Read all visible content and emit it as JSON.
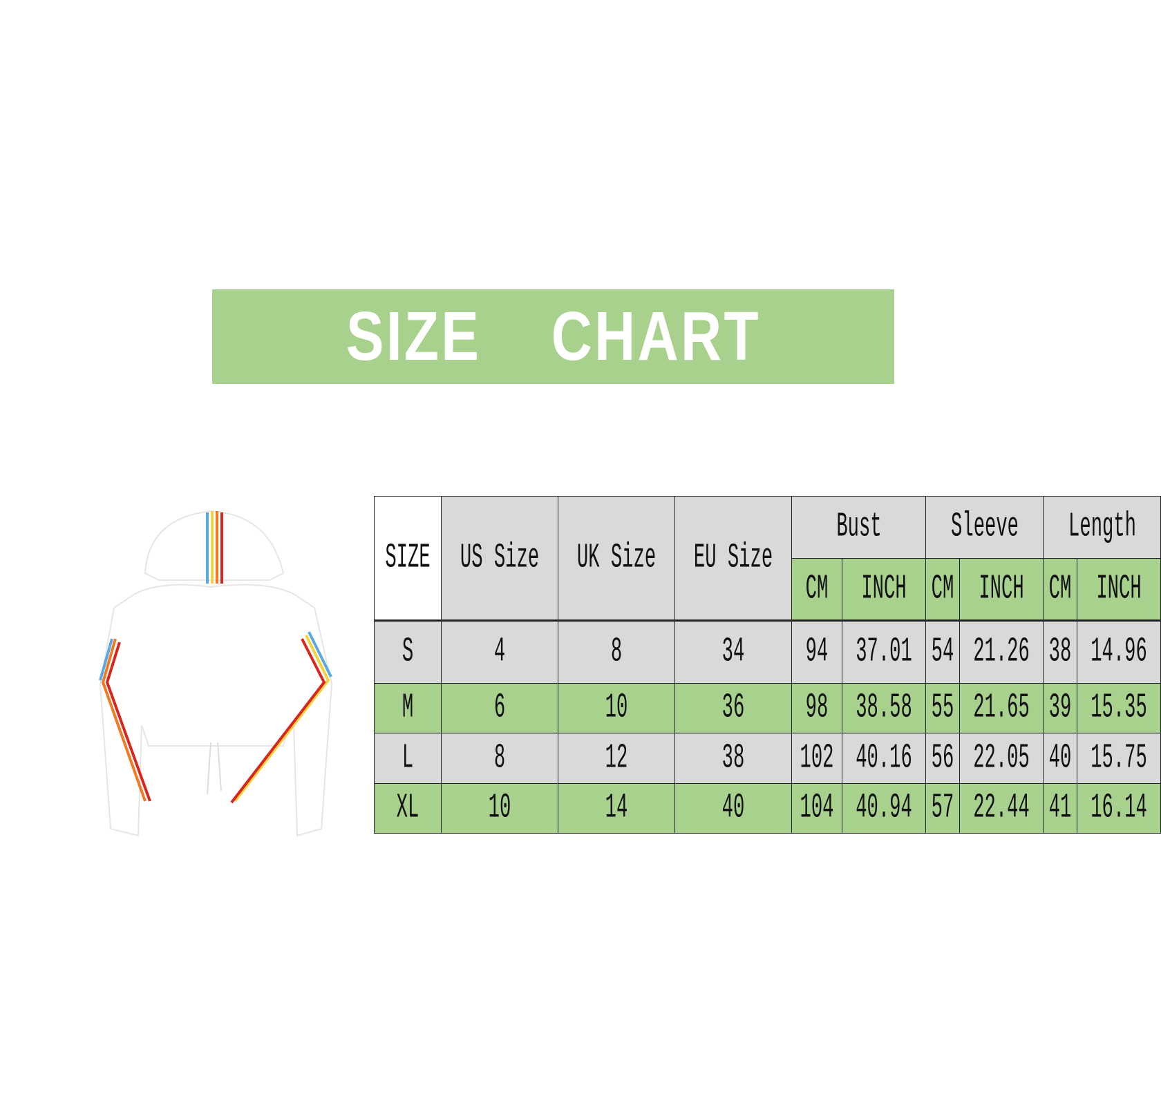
{
  "banner": {
    "title": "SIZE  CHART"
  },
  "colors": {
    "green": "#a9d18e",
    "gray": "#d9d9d9",
    "text": "#111111"
  },
  "product_image": {
    "description_icon": "white-cropped-hoodie-with-rainbow-stripes"
  },
  "table": {
    "headers": {
      "size": "SIZE",
      "us": "US Size",
      "uk": "UK Size",
      "eu": "EU Size",
      "bust": "Bust",
      "sleeve": "Sleeve",
      "length": "Length",
      "cm": "CM",
      "inch": "INCH"
    },
    "rows": [
      {
        "size": "S",
        "us": "4",
        "uk": "8",
        "eu": "34",
        "bust_cm": "94",
        "bust_inch": "37.01",
        "sleeve_cm": "54",
        "sleeve_inch": "21.26",
        "length_cm": "38",
        "length_inch": "14.96"
      },
      {
        "size": "M",
        "us": "6",
        "uk": "10",
        "eu": "36",
        "bust_cm": "98",
        "bust_inch": "38.58",
        "sleeve_cm": "55",
        "sleeve_inch": "21.65",
        "length_cm": "39",
        "length_inch": "15.35"
      },
      {
        "size": "L",
        "us": "8",
        "uk": "12",
        "eu": "38",
        "bust_cm": "102",
        "bust_inch": "40.16",
        "sleeve_cm": "56",
        "sleeve_inch": "22.05",
        "length_cm": "40",
        "length_inch": "15.75"
      },
      {
        "size": "XL",
        "us": "10",
        "uk": "14",
        "eu": "40",
        "bust_cm": "104",
        "bust_inch": "40.94",
        "sleeve_cm": "57",
        "sleeve_inch": "22.44",
        "length_cm": "41",
        "length_inch": "16.14"
      }
    ]
  }
}
